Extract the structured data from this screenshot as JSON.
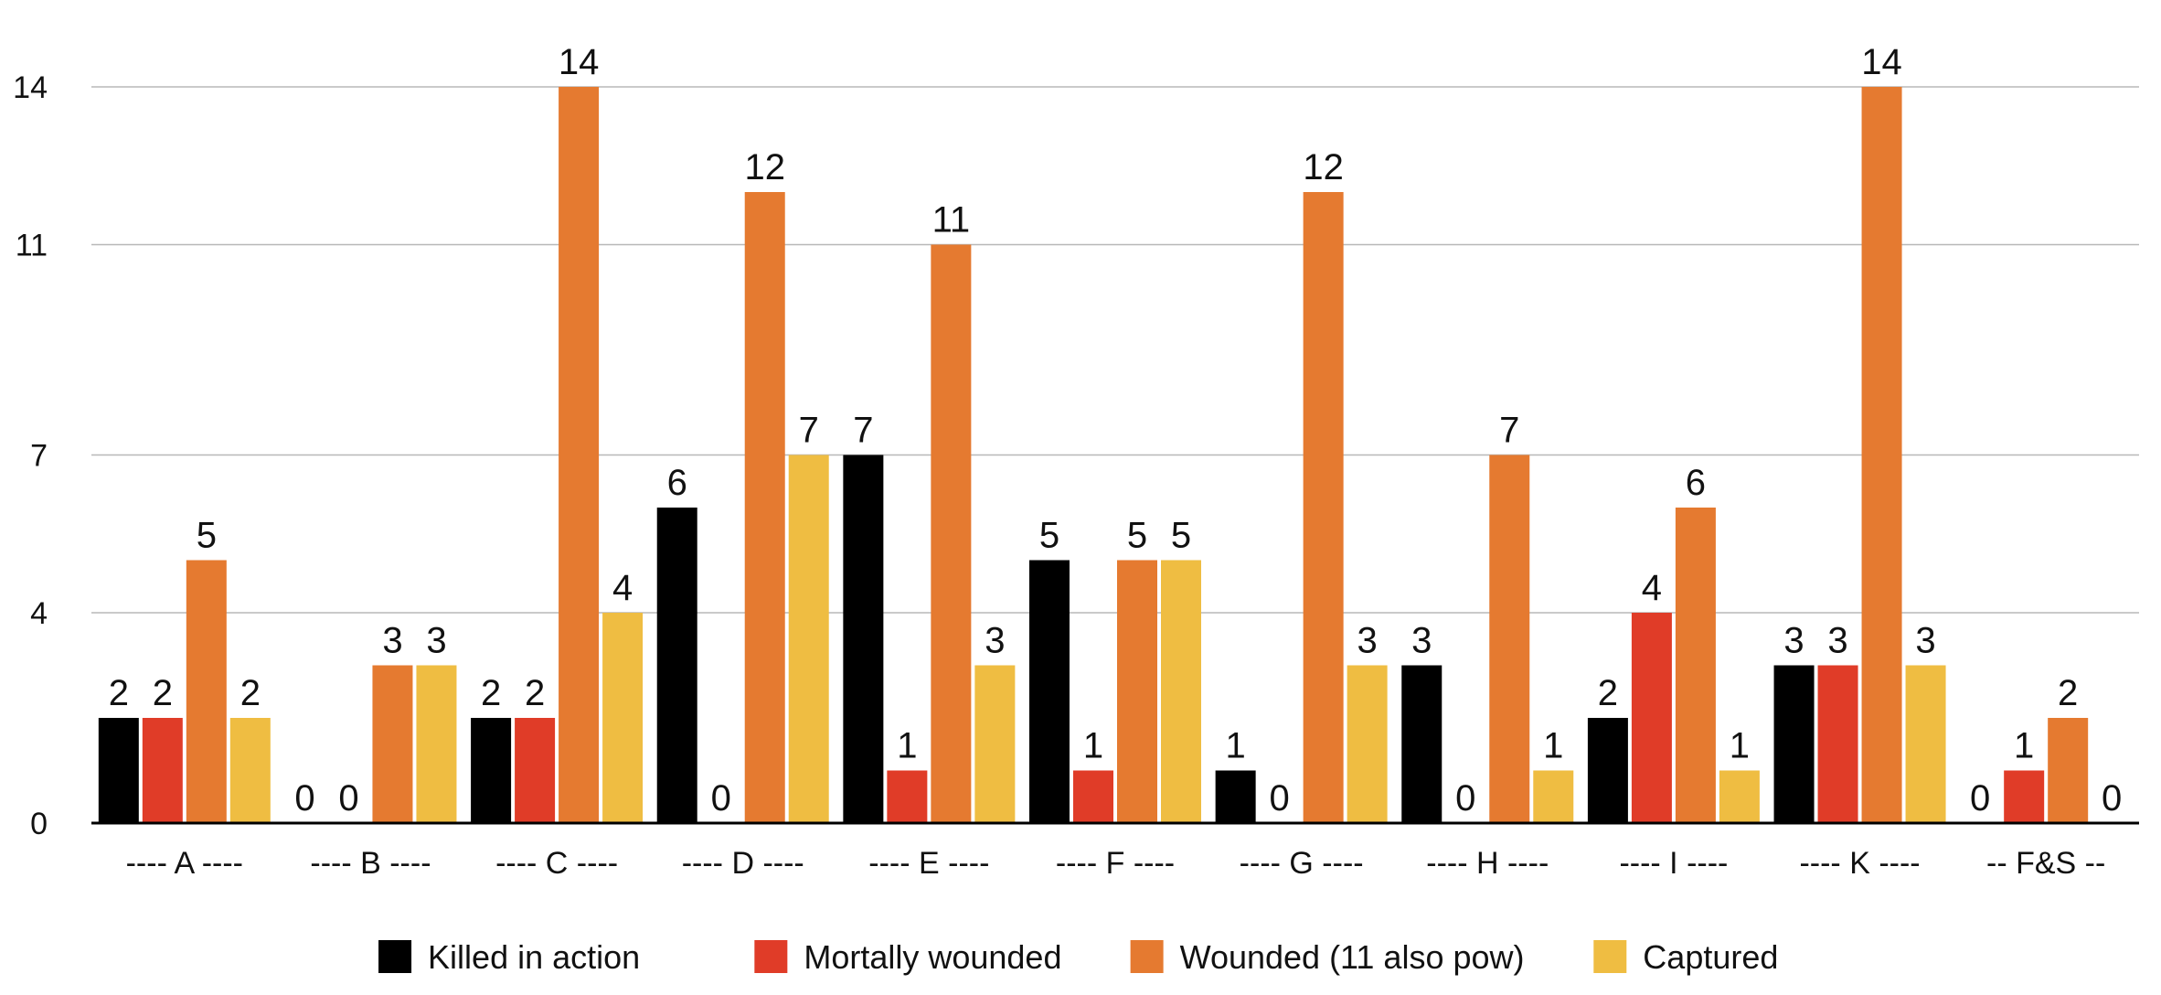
{
  "chart_data": {
    "type": "bar",
    "title": "",
    "xlabel": "",
    "ylabel": "",
    "categories": [
      "---- A ----",
      "---- B ----",
      "---- C ----",
      "---- D ----",
      "---- E ----",
      "---- F ----",
      "---- G ----",
      "---- H ----",
      "---- I ----",
      "---- K ----",
      "-- F&S --"
    ],
    "series": [
      {
        "name": "Killed in action",
        "color": "#000000",
        "values": [
          2,
          0,
          2,
          6,
          7,
          5,
          1,
          3,
          2,
          3,
          0
        ]
      },
      {
        "name": "Mortally wounded",
        "color": "#e03c28",
        "values": [
          2,
          0,
          2,
          0,
          1,
          1,
          0,
          0,
          4,
          3,
          1
        ]
      },
      {
        "name": "Wounded (11 also pow)",
        "color": "#e57a30",
        "values": [
          5,
          3,
          14,
          12,
          11,
          5,
          12,
          7,
          6,
          14,
          2
        ]
      },
      {
        "name": "Captured",
        "color": "#efbd42",
        "values": [
          2,
          3,
          4,
          7,
          3,
          5,
          3,
          1,
          1,
          3,
          0
        ]
      }
    ],
    "yticks": [
      "0",
      "4",
      "7",
      "11",
      "14"
    ],
    "ylim": [
      0,
      14
    ],
    "grid": true,
    "legend_position": "bottom",
    "data_labels": true
  }
}
